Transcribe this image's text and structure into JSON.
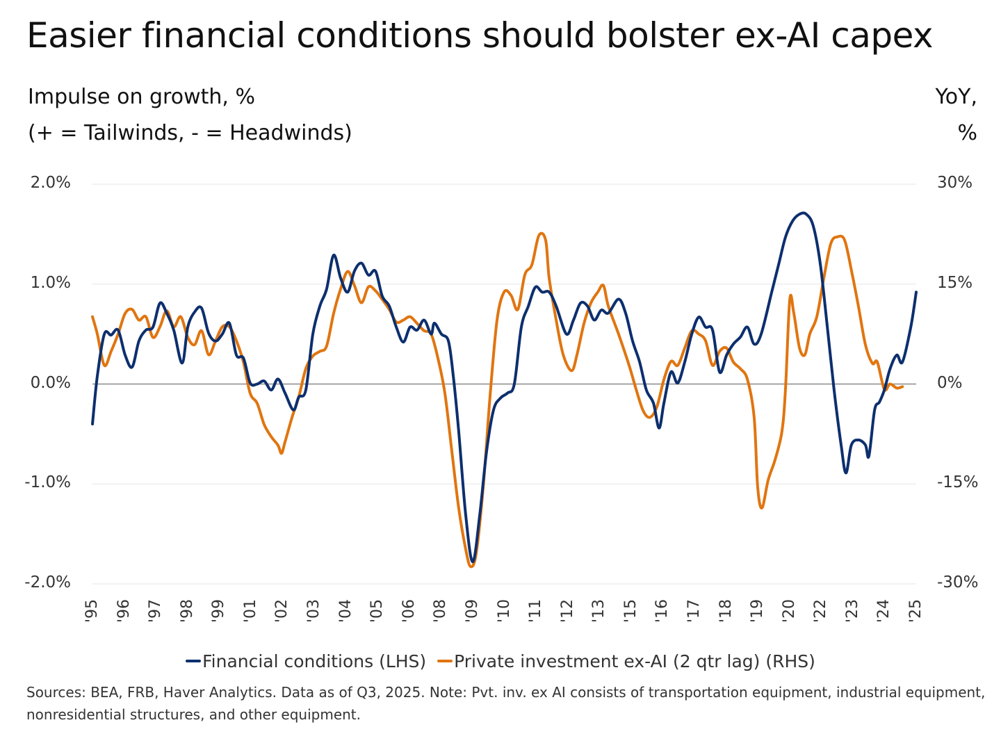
{
  "title": "Easier financial conditions should bolster ex-AI capex",
  "left_axis_title": [
    "Impulse on growth, %",
    "(+ = Tailwinds, - = Headwinds)"
  ],
  "right_axis_title": [
    "YoY,",
    "%"
  ],
  "sources": [
    "Sources: BEA, FRB, Haver Analytics. Data as of Q3, 2025. Note: Pvt. inv. ex AI consists of transportation equipment, industrial equipment,",
    "nonresidential structures, and other equipment."
  ],
  "chart_data": {
    "type": "line",
    "title": "Easier financial conditions should bolster ex-AI capex",
    "xlim": [
      1995,
      2025.5
    ],
    "x_tick_labels": [
      "'95",
      "'96",
      "'97",
      "'98",
      "'99",
      "'01",
      "'02",
      "'03",
      "'04",
      "'05",
      "'06",
      "'08",
      "'09",
      "'10",
      "'11",
      "'12",
      "'13",
      "'15",
      "'16",
      "'17",
      "'18",
      "'19",
      "'20",
      "'22",
      "'23",
      "'24",
      "'25"
    ],
    "y_left": {
      "ylim": [
        -2.0,
        2.0
      ],
      "ticks": [
        "2.0%",
        "1.0%",
        "0.0%",
        "-1.0%",
        "-2.0%"
      ],
      "tick_values": [
        2,
        1,
        0,
        -1,
        -2
      ]
    },
    "y_right": {
      "ylim": [
        -30,
        30
      ],
      "ticks": [
        "30%",
        "15%",
        "0%",
        "-15%",
        "-30%"
      ],
      "tick_values": [
        30,
        15,
        0,
        -15,
        -30
      ]
    },
    "grid": true,
    "legend_position": "bottom",
    "series": [
      {
        "name": "Financial conditions (LHS)",
        "axis": "left",
        "color": "#0d2f6e",
        "x": [
          1995.0,
          1995.18,
          1995.44,
          1995.69,
          1995.95,
          1996.21,
          1996.47,
          1996.72,
          1996.98,
          1997.24,
          1997.5,
          1997.75,
          1998.01,
          1998.32,
          1998.53,
          1998.78,
          1999.04,
          1999.3,
          1999.56,
          1999.81,
          2000.07,
          2000.33,
          2000.59,
          2000.84,
          2001.1,
          2001.36,
          2001.62,
          2001.87,
          2002.13,
          2002.44,
          2002.64,
          2002.9,
          2003.16,
          2003.42,
          2003.67,
          2003.93,
          2004.19,
          2004.45,
          2004.7,
          2004.96,
          2005.22,
          2005.48,
          2005.73,
          2005.99,
          2006.25,
          2006.51,
          2006.76,
          2007.02,
          2007.28,
          2007.54,
          2007.66,
          2007.92,
          2008.18,
          2008.36,
          2008.56,
          2008.82,
          2009.08,
          2009.34,
          2009.59,
          2009.85,
          2010.11,
          2010.37,
          2010.62,
          2010.88,
          2011.14,
          2011.4,
          2011.65,
          2011.91,
          2012.17,
          2012.55,
          2012.81,
          2013.07,
          2013.33,
          2013.58,
          2013.84,
          2014.1,
          2014.48,
          2014.74,
          2015.0,
          2015.26,
          2015.51,
          2015.77,
          2015.98,
          2016.16,
          2016.42,
          2016.67,
          2016.93,
          2017.19,
          2017.45,
          2017.7,
          2017.96,
          2018.22,
          2018.48,
          2018.73,
          2018.99,
          2019.25,
          2019.5,
          2019.76,
          2020.15,
          2020.41,
          2020.66,
          2020.92,
          2021.18,
          2021.43,
          2021.69,
          2021.95,
          2022.21,
          2022.46,
          2022.72,
          2022.9,
          2023.1,
          2023.36,
          2023.62,
          2023.75,
          2023.96,
          2024.14,
          2024.32,
          2024.53,
          2024.78,
          2024.99,
          2025.3,
          2025.5
        ],
        "values": [
          -0.4,
          0.08,
          0.5,
          0.49,
          0.54,
          0.29,
          0.17,
          0.43,
          0.54,
          0.57,
          0.81,
          0.71,
          0.54,
          0.21,
          0.57,
          0.72,
          0.76,
          0.51,
          0.43,
          0.5,
          0.61,
          0.29,
          0.26,
          0.01,
          0.0,
          0.03,
          -0.06,
          0.05,
          -0.09,
          -0.26,
          -0.13,
          -0.06,
          0.5,
          0.78,
          0.95,
          1.29,
          1.06,
          0.92,
          1.13,
          1.21,
          1.09,
          1.13,
          0.88,
          0.78,
          0.57,
          0.42,
          0.57,
          0.54,
          0.64,
          0.5,
          0.61,
          0.5,
          0.43,
          0.08,
          -0.47,
          -1.31,
          -1.78,
          -1.31,
          -0.68,
          -0.26,
          -0.14,
          -0.09,
          0.0,
          0.57,
          0.78,
          0.97,
          0.92,
          0.92,
          0.78,
          0.5,
          0.64,
          0.81,
          0.78,
          0.64,
          0.74,
          0.71,
          0.85,
          0.71,
          0.43,
          0.22,
          -0.06,
          -0.19,
          -0.44,
          -0.19,
          0.12,
          0.01,
          0.22,
          0.5,
          0.67,
          0.57,
          0.54,
          0.12,
          0.29,
          0.4,
          0.47,
          0.57,
          0.4,
          0.5,
          0.92,
          1.2,
          1.47,
          1.63,
          1.7,
          1.7,
          1.58,
          1.2,
          0.57,
          -0.06,
          -0.61,
          -0.89,
          -0.61,
          -0.56,
          -0.61,
          -0.72,
          -0.26,
          -0.18,
          -0.06,
          0.15,
          0.29,
          0.22,
          0.57,
          0.92
        ]
      },
      {
        "name": "Private investment ex-AI (2 qtr lag) (RHS)",
        "axis": "right",
        "color": "#e07510",
        "x": [
          1995.0,
          1995.18,
          1995.44,
          1995.69,
          1995.95,
          1996.21,
          1996.47,
          1996.72,
          1996.98,
          1997.24,
          1997.5,
          1997.75,
          1998.01,
          1998.27,
          1998.53,
          1998.78,
          1999.04,
          1999.3,
          1999.56,
          1999.81,
          2000.07,
          2000.33,
          2000.59,
          2000.84,
          2001.1,
          2001.36,
          2001.62,
          2001.87,
          2002.0,
          2002.13,
          2002.39,
          2002.64,
          2002.9,
          2003.16,
          2003.42,
          2003.67,
          2003.93,
          2004.19,
          2004.45,
          2004.7,
          2004.96,
          2005.22,
          2005.48,
          2005.73,
          2005.99,
          2006.25,
          2006.51,
          2006.76,
          2007.02,
          2007.28,
          2007.54,
          2007.79,
          2008.05,
          2008.31,
          2008.56,
          2008.82,
          2009.0,
          2009.21,
          2009.47,
          2009.72,
          2009.98,
          2010.24,
          2010.5,
          2010.75,
          2011.01,
          2011.27,
          2011.53,
          2011.78,
          2011.91,
          2012.17,
          2012.43,
          2012.74,
          2012.94,
          2013.2,
          2013.46,
          2013.71,
          2013.92,
          2014.1,
          2014.48,
          2014.87,
          2015.13,
          2015.39,
          2015.64,
          2015.9,
          2016.16,
          2016.42,
          2016.67,
          2016.93,
          2017.19,
          2017.45,
          2017.7,
          2017.96,
          2018.22,
          2018.48,
          2018.73,
          2018.99,
          2019.25,
          2019.5,
          2019.63,
          2019.79,
          2020.02,
          2020.28,
          2020.53,
          2020.66,
          2020.82,
          2020.97,
          2021.18,
          2021.38,
          2021.56,
          2021.82,
          2022.08,
          2022.34,
          2022.59,
          2022.85,
          2023.11,
          2023.36,
          2023.62,
          2023.88,
          2024.06,
          2024.32,
          2024.53,
          2024.78,
          2024.99
        ],
        "values": [
          10.1,
          7.5,
          2.8,
          4.9,
          7.5,
          10.6,
          11.2,
          9.6,
          10.1,
          7.0,
          8.6,
          11.0,
          8.6,
          10.1,
          7.0,
          5.9,
          8.0,
          4.4,
          6.5,
          8.6,
          8.6,
          6.5,
          3.3,
          -1.4,
          -2.9,
          -6.1,
          -7.9,
          -9.2,
          -10.4,
          -8.7,
          -5.0,
          -1.9,
          2.3,
          4.2,
          4.9,
          5.7,
          10.6,
          14.3,
          16.9,
          14.8,
          12.2,
          14.6,
          14.0,
          12.7,
          11.2,
          9.3,
          9.6,
          10.1,
          9.1,
          8.0,
          7.5,
          3.9,
          -1.4,
          -10.2,
          -18.6,
          -24.8,
          -27.4,
          -25.4,
          -15.4,
          -1.9,
          9.6,
          13.8,
          13.3,
          11.2,
          16.4,
          17.9,
          22.3,
          21.6,
          15.9,
          9.6,
          4.4,
          2.0,
          4.4,
          9.1,
          12.2,
          13.8,
          14.8,
          11.7,
          7.5,
          2.8,
          -0.8,
          -4.0,
          -5.0,
          -3.4,
          0.7,
          3.4,
          2.8,
          5.4,
          8.0,
          7.5,
          6.5,
          2.8,
          4.9,
          5.4,
          3.3,
          2.3,
          0.7,
          -5.0,
          -15.4,
          -18.6,
          -14.4,
          -11.3,
          -7.1,
          -0.8,
          12.7,
          10.6,
          5.4,
          4.4,
          7.5,
          10.1,
          15.9,
          21.1,
          22.1,
          21.6,
          16.9,
          11.7,
          5.9,
          3.1,
          3.3,
          -0.8,
          0.0,
          -0.6,
          -0.4
        ]
      }
    ]
  }
}
